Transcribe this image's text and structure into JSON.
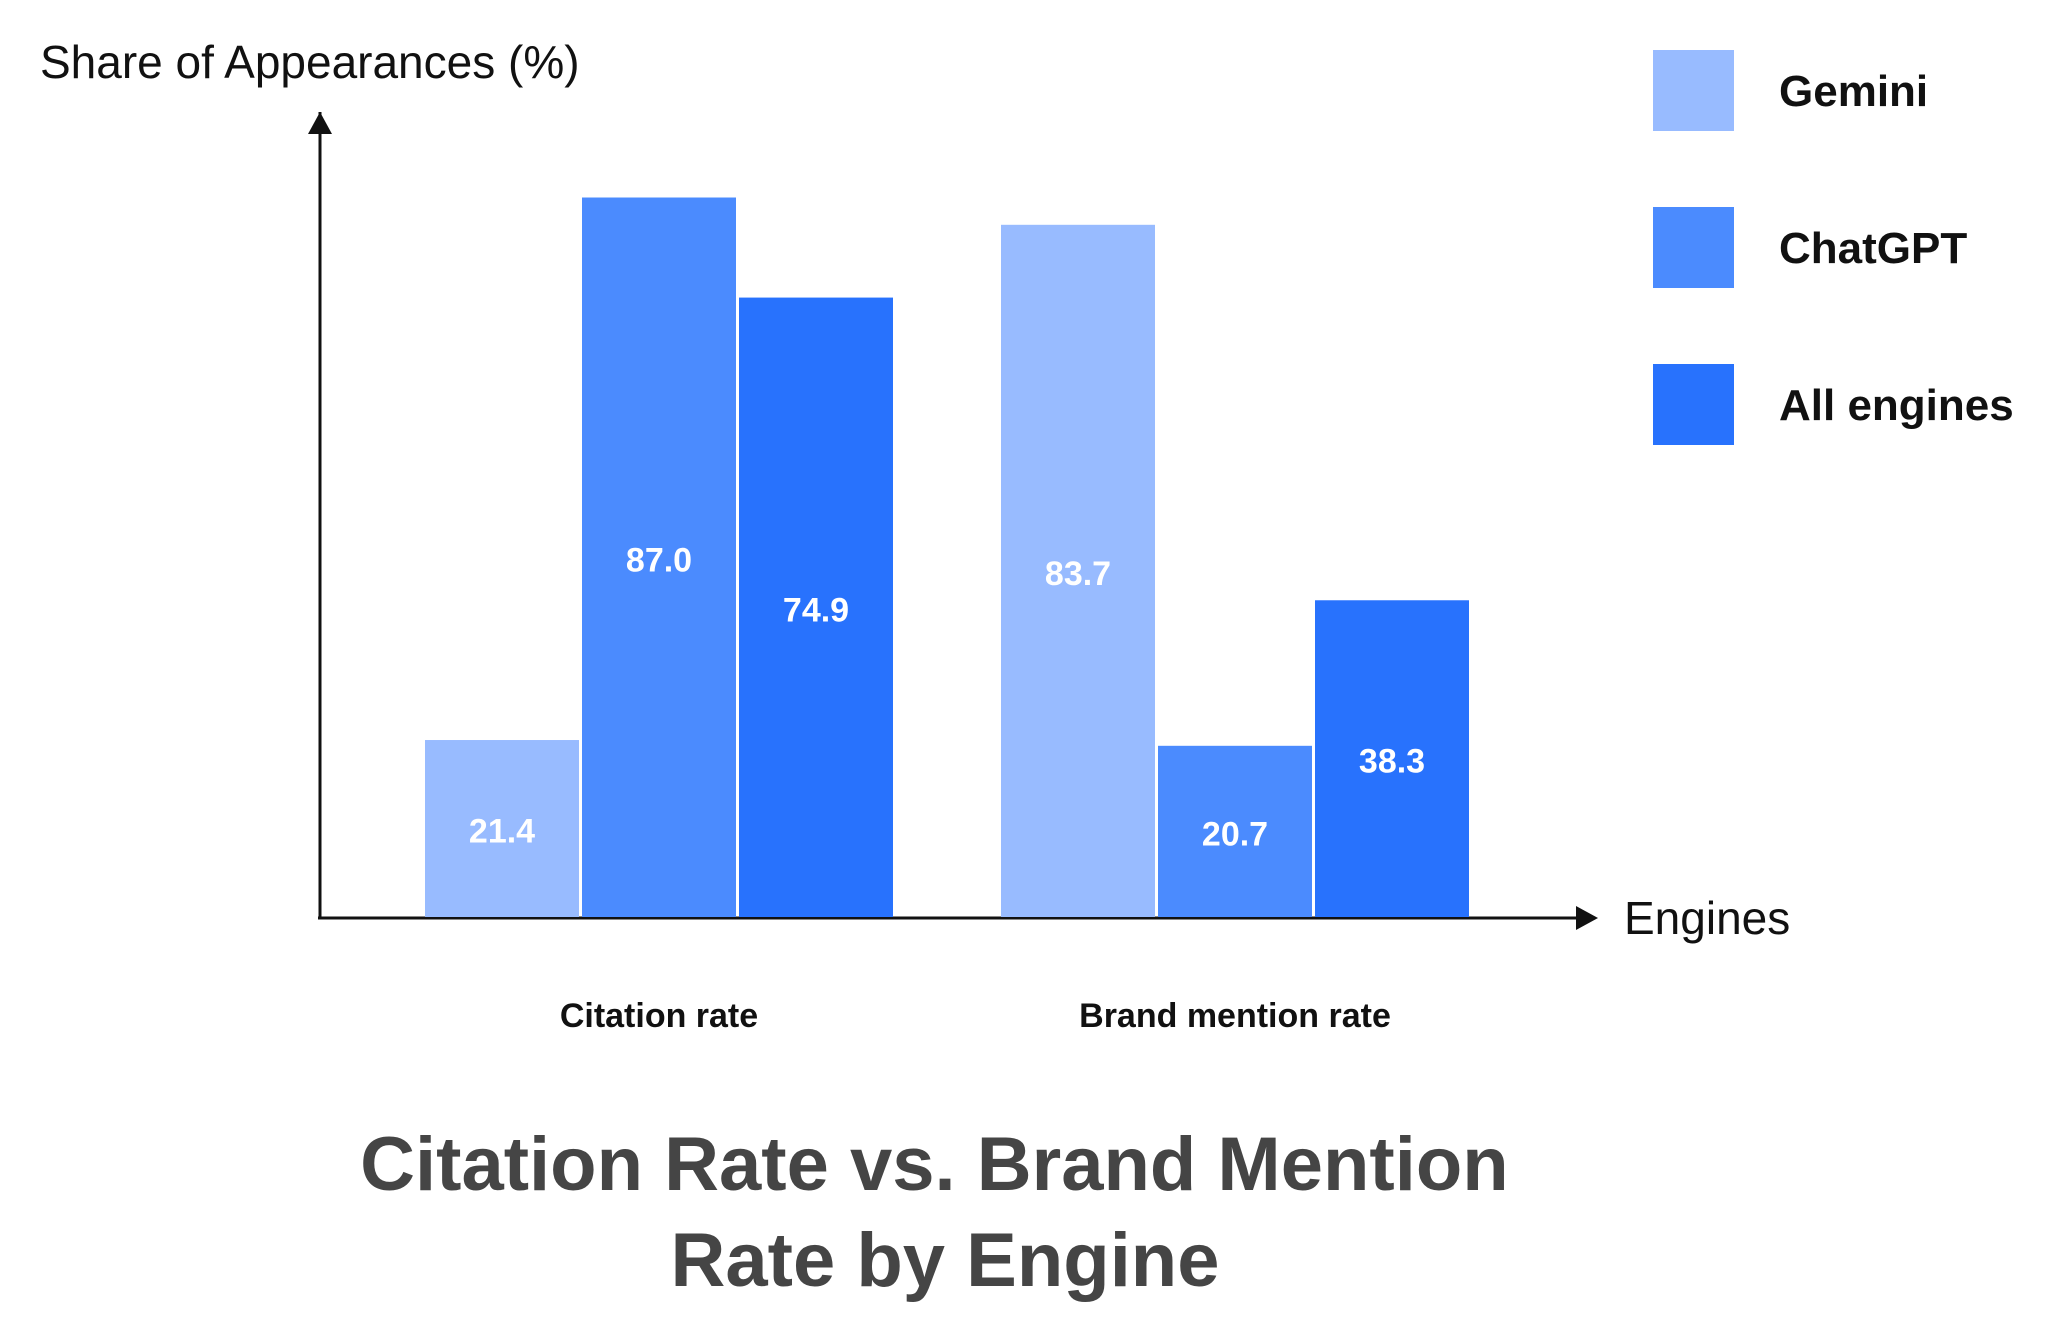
{
  "chart_data": {
    "type": "bar",
    "title": "Citation Rate vs. Brand Mention Rate by Engine",
    "ylabel": "Share of Appearances (%)",
    "xlabel": "Engines",
    "categories": [
      "Citation rate",
      "Brand mention rate"
    ],
    "series": [
      {
        "name": "Gemini",
        "values": [
          21.4,
          83.7
        ],
        "color": "#98BBFF"
      },
      {
        "name": "ChatGPT",
        "values": [
          87.0,
          20.7
        ],
        "color": "#4B8BFE"
      },
      {
        "name": "All engines",
        "values": [
          74.9,
          38.3
        ],
        "color": "#2872FD"
      }
    ],
    "ylim": [
      0,
      100
    ],
    "grid": false,
    "legend": "top-right",
    "data_labels": true,
    "text_color": "#454545",
    "label_color": "#ffffff"
  }
}
